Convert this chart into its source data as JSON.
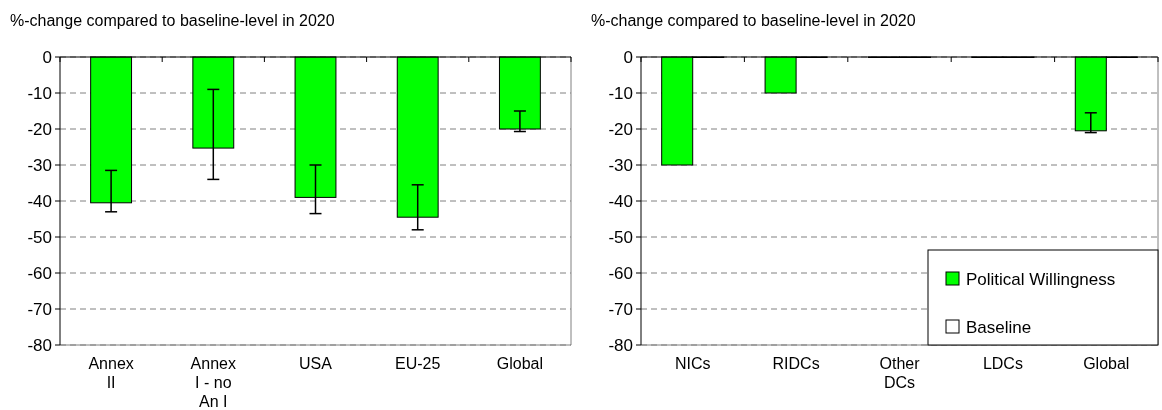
{
  "chart_data": [
    {
      "type": "bar",
      "title": "%-change compared to baseline-level in 2020",
      "categories": [
        "Annex II",
        "Annex I - no An I",
        "USA",
        "EU-25",
        "Global"
      ],
      "ylim": [
        -80,
        0
      ],
      "yticks": [
        -80,
        -70,
        -60,
        -50,
        -40,
        -30,
        -20,
        -10,
        0
      ],
      "grid": "y",
      "legend": false,
      "series": [
        {
          "color": "#00ff00",
          "values": [
            -40.5,
            -25.3,
            -39,
            -44.5,
            -20
          ],
          "errors": [
            [
              -43,
              -31.5
            ],
            [
              -34,
              -9
            ],
            [
              -43.5,
              -30
            ],
            [
              -48,
              -35.5
            ],
            [
              -20.7,
              -15
            ]
          ]
        }
      ]
    },
    {
      "type": "bar",
      "title": "%-change compared to baseline-level in 2020",
      "categories": [
        "NICs",
        "RIDCs",
        "Other DCs",
        "LDCs",
        "Global"
      ],
      "ylim": [
        -80,
        0
      ],
      "yticks": [
        -80,
        -70,
        -60,
        -50,
        -40,
        -30,
        -20,
        -10,
        0
      ],
      "grid": "y",
      "legend": "bottom right",
      "series": [
        {
          "name": "Political Willingness",
          "color": "#00ff00",
          "values": [
            -30,
            -10,
            0,
            0,
            -20.5
          ],
          "errors": [
            null,
            null,
            null,
            null,
            [
              -21,
              -15.5
            ]
          ]
        },
        {
          "name": "Baseline",
          "color": "#ffffff",
          "values": [
            0,
            0,
            0,
            0,
            0
          ]
        }
      ]
    }
  ]
}
